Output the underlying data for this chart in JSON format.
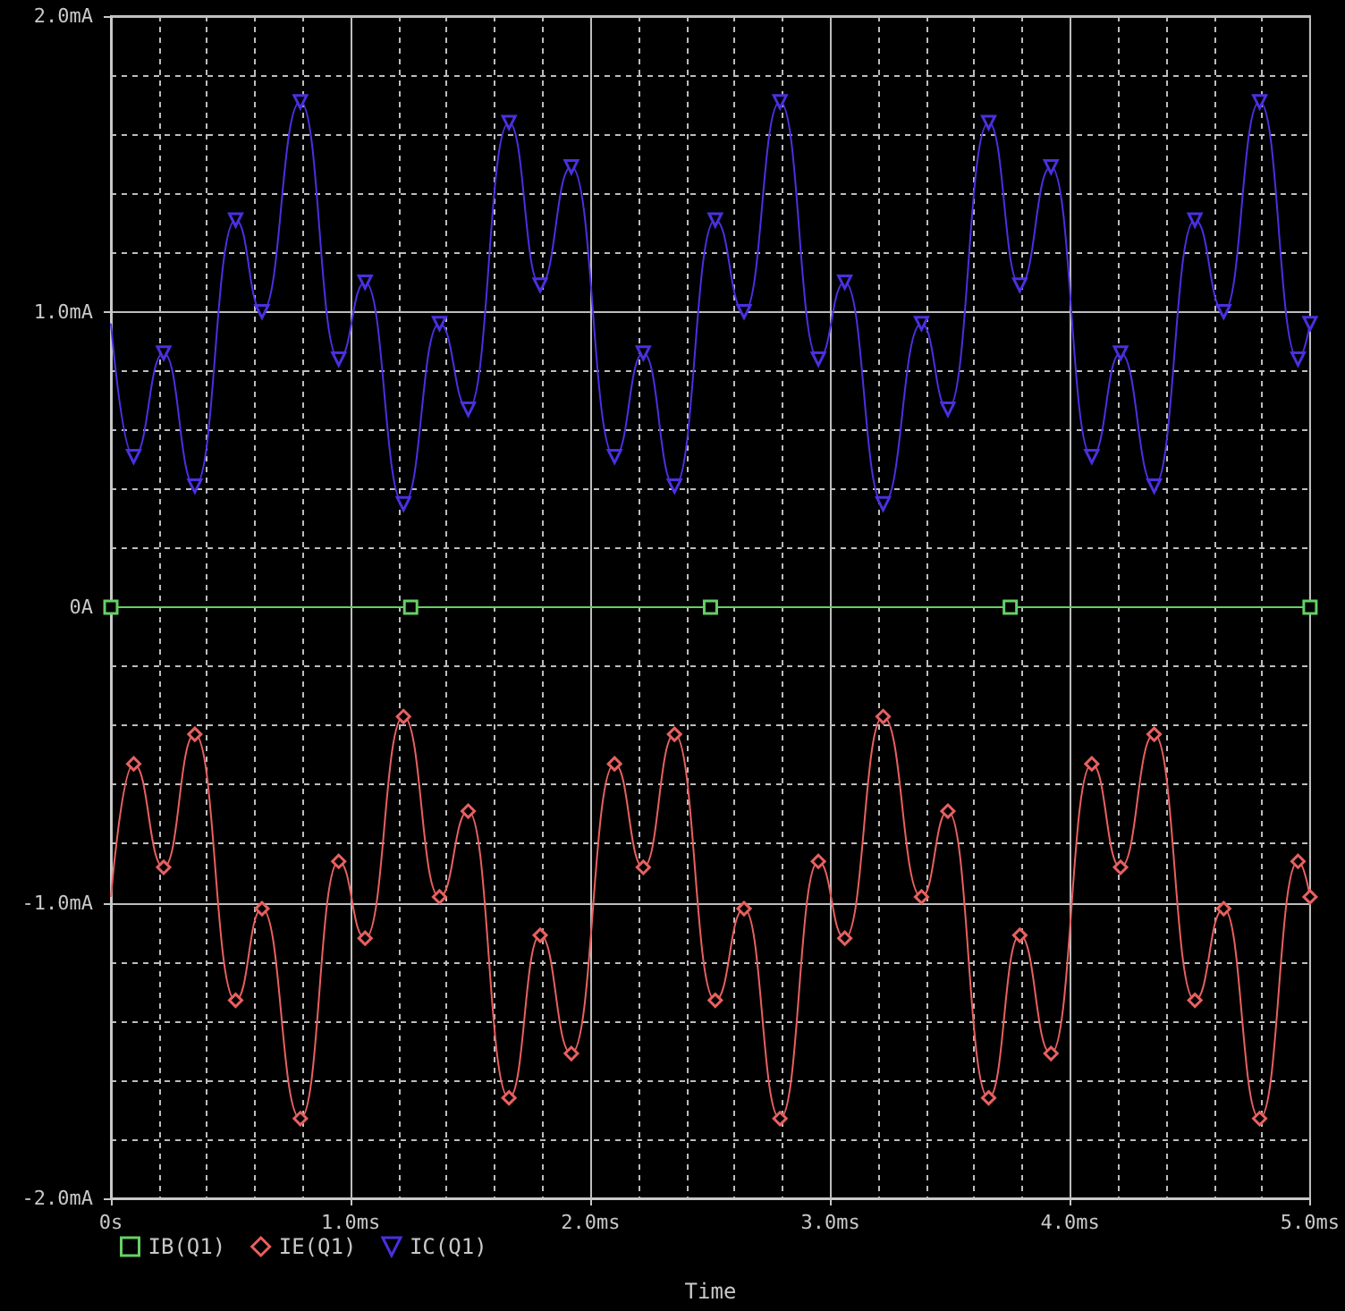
{
  "chart_data": {
    "type": "line",
    "xlabel": "Time",
    "x": [
      0,
      0.095,
      0.22,
      0.35,
      0.52,
      0.63,
      0.79,
      0.95,
      1.06,
      1.22,
      1.37,
      1.49,
      1.66,
      1.79,
      1.92,
      2.1,
      2.22,
      2.35,
      2.52,
      2.64,
      2.79,
      2.95,
      3.06,
      3.22,
      3.38,
      3.49,
      3.66,
      3.79,
      3.92,
      4.09,
      4.21,
      4.35,
      4.52,
      4.64,
      4.79,
      4.95,
      5.0
    ],
    "series": [
      {
        "name": "IB(Q1)",
        "color": "#66d066",
        "marker": "square",
        "x": [
          0,
          1.25,
          2.5,
          3.75,
          5.0
        ],
        "values": [
          0,
          0,
          0,
          0,
          0
        ]
      },
      {
        "name": "IE(Q1)",
        "color": "#e86060",
        "marker": "diamond",
        "values": [
          -0.98,
          -0.53,
          -0.88,
          -0.43,
          -1.33,
          -1.02,
          -1.73,
          -0.86,
          -1.12,
          -0.37,
          -0.98,
          -0.69,
          -1.66,
          -1.11,
          -1.51,
          -0.53,
          -0.88,
          -0.43,
          -1.33,
          -1.02,
          -1.73,
          -0.86,
          -1.12,
          -0.37,
          -0.98,
          -0.69,
          -1.66,
          -1.11,
          -1.51,
          -0.53,
          -0.88,
          -0.43,
          -1.33,
          -1.02,
          -1.73,
          -0.86,
          -0.98
        ]
      },
      {
        "name": "IC(Q1)",
        "color": "#4a30e0",
        "marker": "triangle",
        "values": [
          0.96,
          0.51,
          0.86,
          0.41,
          1.31,
          1.0,
          1.71,
          0.84,
          1.1,
          0.35,
          0.96,
          0.67,
          1.64,
          1.09,
          1.49,
          0.51,
          0.86,
          0.41,
          1.31,
          1.0,
          1.71,
          0.84,
          1.1,
          0.35,
          0.96,
          0.67,
          1.64,
          1.09,
          1.49,
          0.51,
          0.86,
          0.41,
          1.31,
          1.0,
          1.71,
          0.84,
          0.96
        ]
      }
    ],
    "xlim": [
      0,
      5
    ],
    "xticks": [
      {
        "value": 0,
        "label": "0s"
      },
      {
        "value": 1,
        "label": "1.0ms"
      },
      {
        "value": 2,
        "label": "2.0ms"
      },
      {
        "value": 3,
        "label": "3.0ms"
      },
      {
        "value": 4,
        "label": "4.0ms"
      },
      {
        "value": 5,
        "label": "5.0ms"
      }
    ],
    "ylim": [
      -2,
      2
    ],
    "yticks": [
      {
        "value": -2,
        "label": "-2.0mA"
      },
      {
        "value": -1,
        "label": "-1.0mA"
      },
      {
        "value": 0,
        "label": "0A"
      },
      {
        "value": 1,
        "label": "1.0mA"
      },
      {
        "value": 2,
        "label": "2.0mA"
      }
    ],
    "grid": true,
    "legend": "bottom left"
  }
}
